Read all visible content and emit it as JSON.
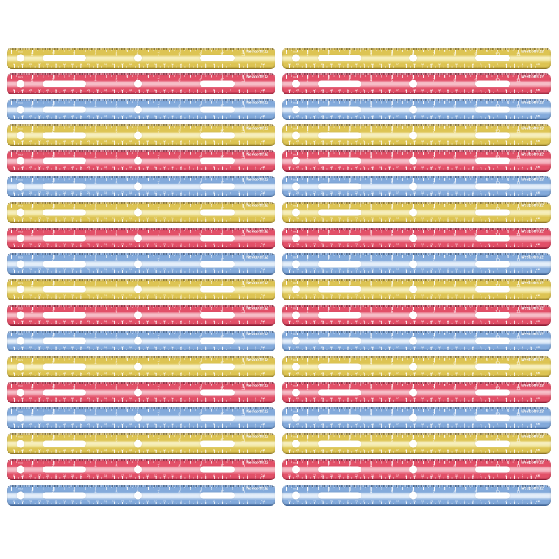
{
  "product": {
    "description": "Two stacked columns of translucent plastic 12-inch / 30-cm rulers in a repeating yellow, red, blue color pattern on a white background",
    "columns": 2,
    "rulers_per_column": 18,
    "color_sequence": [
      "yellow",
      "red",
      "blue"
    ],
    "ruler": {
      "brand_text": "Westcott® 12",
      "left_label": "inch",
      "cm_label": "CM",
      "inch_numbers": [
        1,
        2,
        3,
        4,
        5,
        6,
        7,
        8,
        9,
        10,
        11
      ],
      "cm_numbers": [
        30,
        29,
        28,
        27,
        26,
        25,
        24,
        23,
        22,
        21,
        20,
        19,
        18,
        17,
        16,
        15,
        14,
        13,
        12,
        11,
        10,
        9,
        8,
        7,
        6,
        5,
        4,
        3,
        2,
        1
      ]
    },
    "colors": {
      "yellow": {
        "base": "#ddc453",
        "light": "#f2e79f",
        "dark": "#a8892c",
        "tick": "rgba(255,255,255,0.85)",
        "text": "#ffffff"
      },
      "red": {
        "base": "#e25068",
        "light": "#f2a0ae",
        "dark": "#a81f3e",
        "tick": "rgba(255,255,255,0.85)",
        "text": "#ffffff"
      },
      "blue": {
        "base": "#83aadb",
        "light": "#d9e7f7",
        "dark": "#4b79b8",
        "tick": "rgba(255,255,255,0.9)",
        "text": "#ffffff"
      }
    }
  }
}
